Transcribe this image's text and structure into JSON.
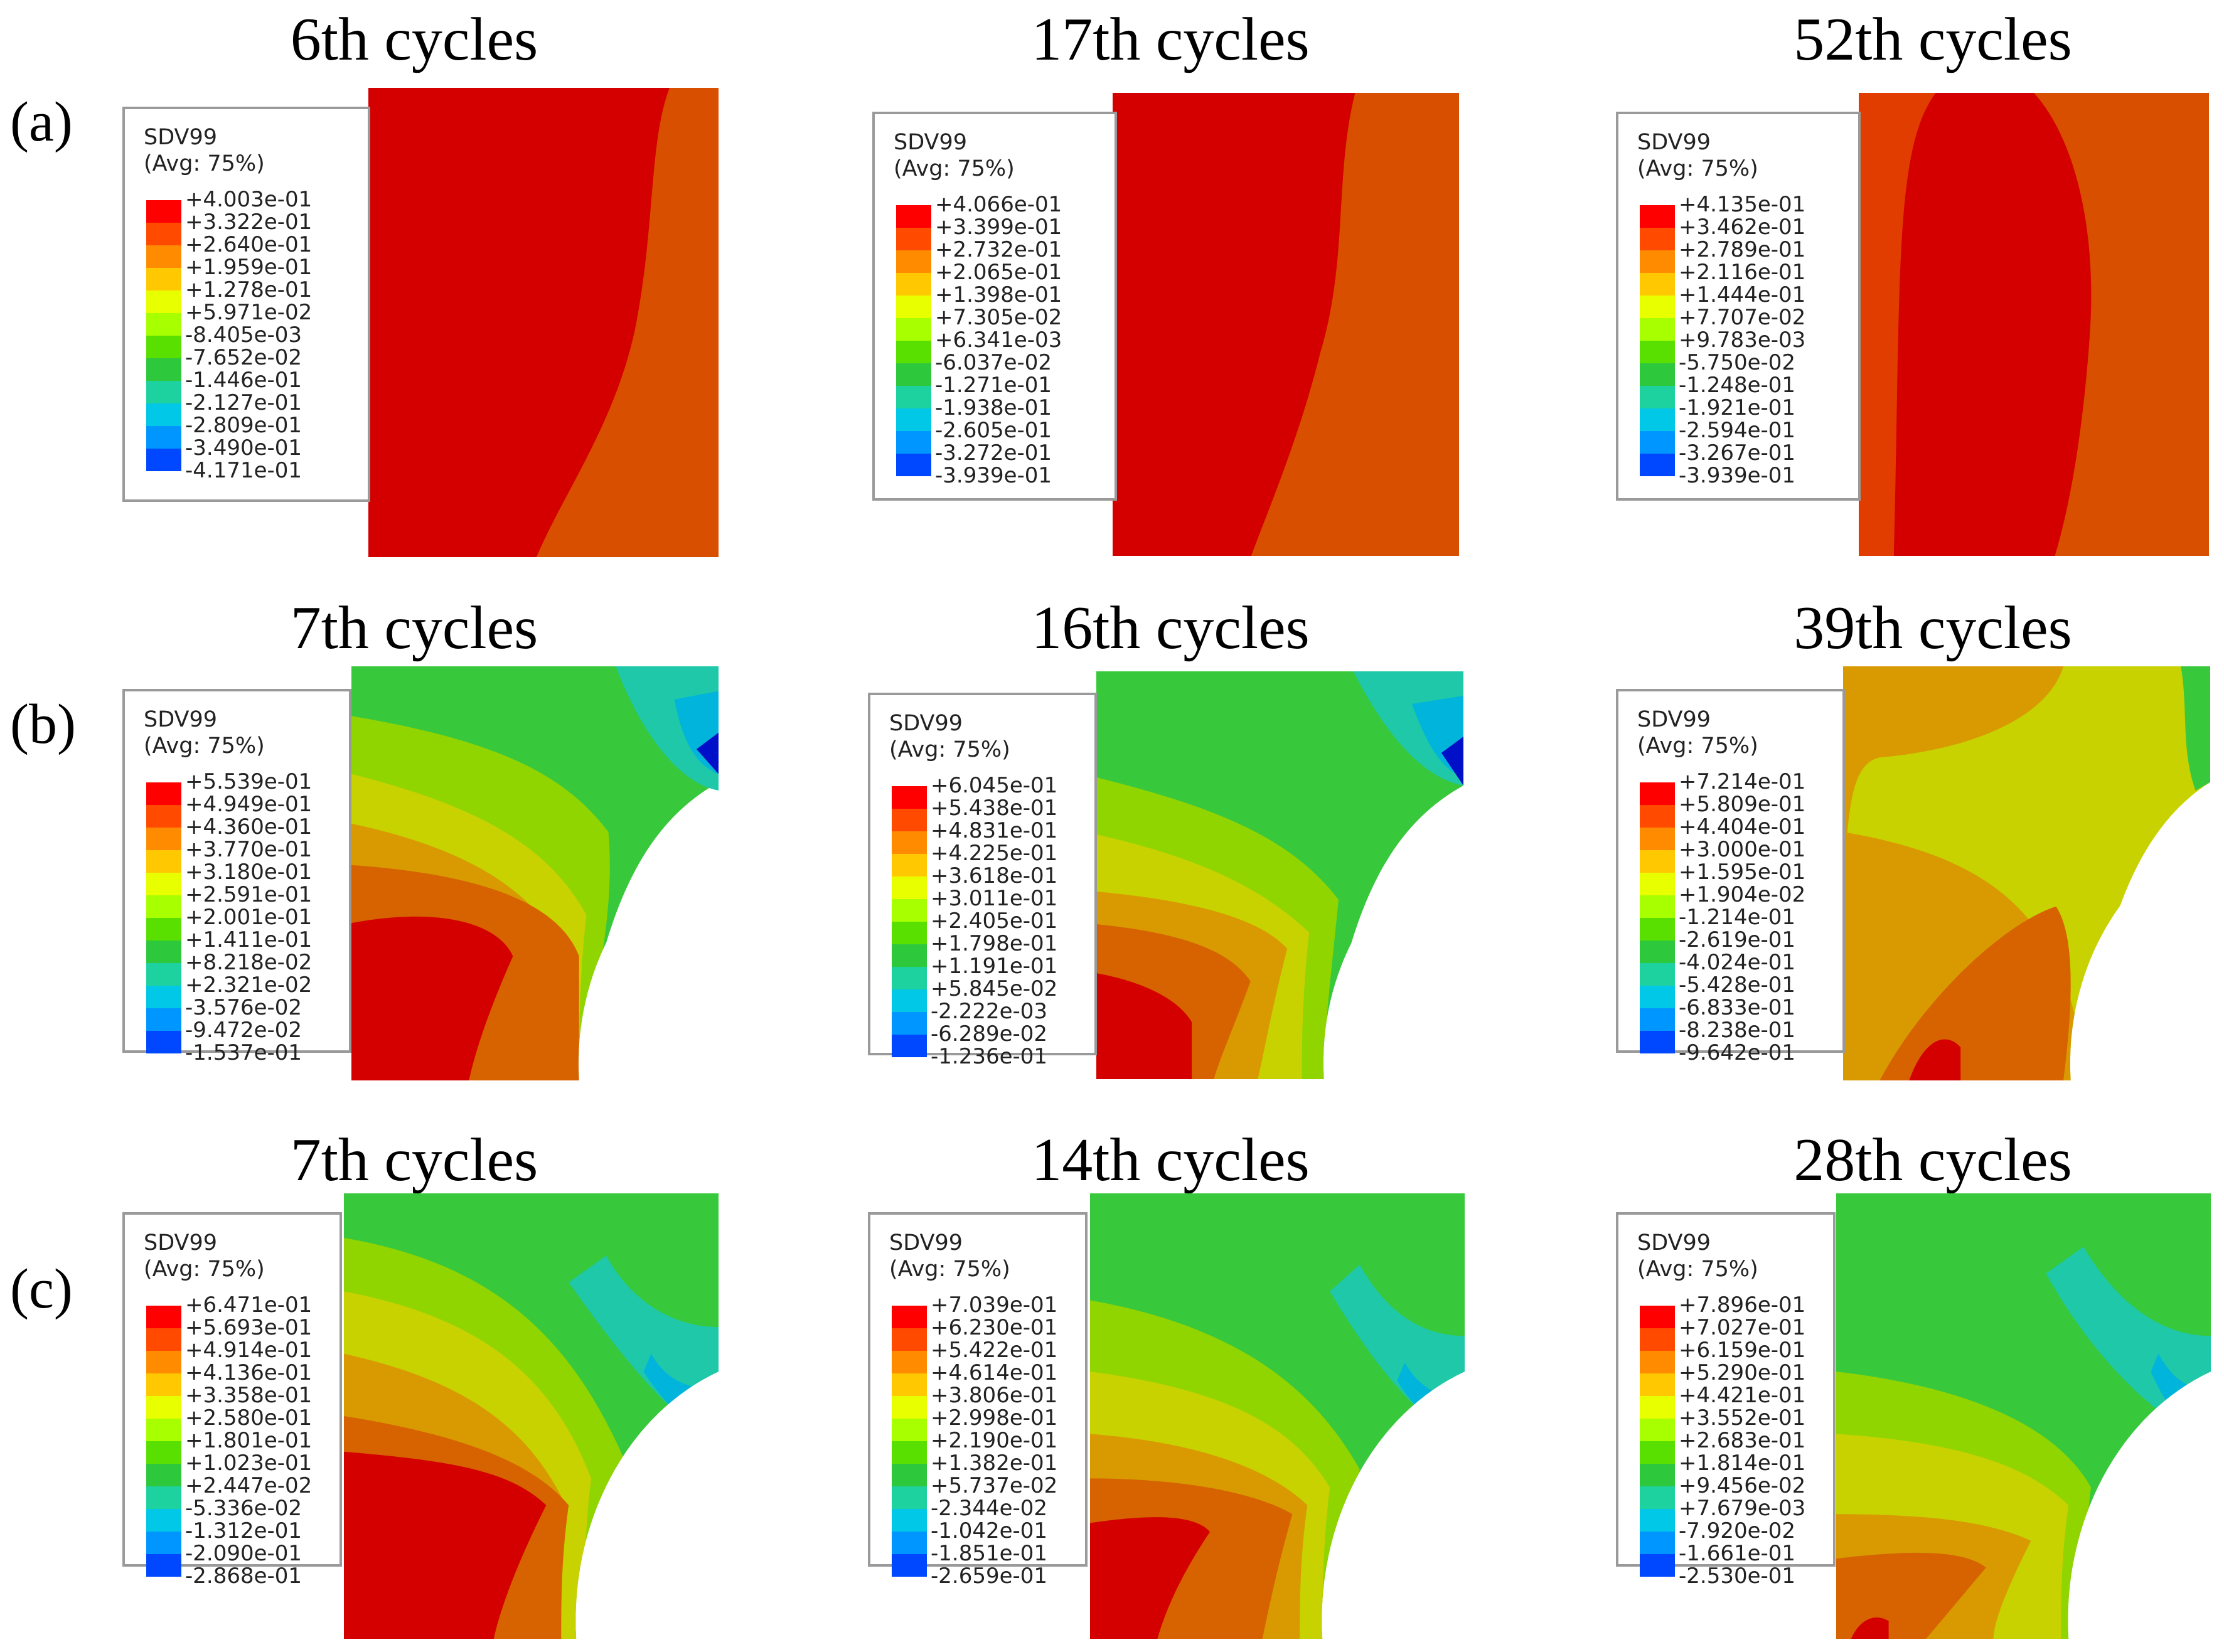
{
  "rows": [
    {
      "label": "(a)",
      "panels": [
        {
          "title": "6th cycles",
          "legend": {
            "variable": "SDV99",
            "avg": "(Avg: 75%)",
            "values": [
              "+4.003e-01",
              "+3.322e-01",
              "+2.640e-01",
              "+1.959e-01",
              "+1.278e-01",
              "+5.971e-02",
              "-8.405e-03",
              "-7.652e-02",
              "-1.446e-01",
              "-2.127e-01",
              "-2.809e-01",
              "-3.490e-01",
              "-4.171e-01"
            ]
          }
        },
        {
          "title": "17th cycles",
          "legend": {
            "variable": "SDV99",
            "avg": "(Avg: 75%)",
            "values": [
              "+4.066e-01",
              "+3.399e-01",
              "+2.732e-01",
              "+2.065e-01",
              "+1.398e-01",
              "+7.305e-02",
              "+6.341e-03",
              "-6.037e-02",
              "-1.271e-01",
              "-1.938e-01",
              "-2.605e-01",
              "-3.272e-01",
              "-3.939e-01"
            ]
          }
        },
        {
          "title": "52th cycles",
          "legend": {
            "variable": "SDV99",
            "avg": "(Avg: 75%)",
            "values": [
              "+4.135e-01",
              "+3.462e-01",
              "+2.789e-01",
              "+2.116e-01",
              "+1.444e-01",
              "+7.707e-02",
              "+9.783e-03",
              "-5.750e-02",
              "-1.248e-01",
              "-1.921e-01",
              "-2.594e-01",
              "-3.267e-01",
              "-3.939e-01"
            ]
          }
        }
      ]
    },
    {
      "label": "(b)",
      "panels": [
        {
          "title": "7th cycles",
          "legend": {
            "variable": "SDV99",
            "avg": "(Avg: 75%)",
            "values": [
              "+5.539e-01",
              "+4.949e-01",
              "+4.360e-01",
              "+3.770e-01",
              "+3.180e-01",
              "+2.591e-01",
              "+2.001e-01",
              "+1.411e-01",
              "+8.218e-02",
              "+2.321e-02",
              "-3.576e-02",
              "-9.472e-02",
              "-1.537e-01"
            ]
          }
        },
        {
          "title": "16th cycles",
          "legend": {
            "variable": "SDV99",
            "avg": "(Avg: 75%)",
            "values": [
              "+6.045e-01",
              "+5.438e-01",
              "+4.831e-01",
              "+4.225e-01",
              "+3.618e-01",
              "+3.011e-01",
              "+2.405e-01",
              "+1.798e-01",
              "+1.191e-01",
              "+5.845e-02",
              "-2.222e-03",
              "-6.289e-02",
              "-1.236e-01"
            ]
          }
        },
        {
          "title": "39th cycles",
          "legend": {
            "variable": "SDV99",
            "avg": "(Avg: 75%)",
            "values": [
              "+7.214e-01",
              "+5.809e-01",
              "+4.404e-01",
              "+3.000e-01",
              "+1.595e-01",
              "+1.904e-02",
              "-1.214e-01",
              "-2.619e-01",
              "-4.024e-01",
              "-5.428e-01",
              "-6.833e-01",
              "-8.238e-01",
              "-9.642e-01"
            ]
          }
        }
      ]
    },
    {
      "label": "(c)",
      "panels": [
        {
          "title": "7th cycles",
          "legend": {
            "variable": "SDV99",
            "avg": "(Avg: 75%)",
            "values": [
              "+6.471e-01",
              "+5.693e-01",
              "+4.914e-01",
              "+4.136e-01",
              "+3.358e-01",
              "+2.580e-01",
              "+1.801e-01",
              "+1.023e-01",
              "+2.447e-02",
              "-5.336e-02",
              "-1.312e-01",
              "-2.090e-01",
              "-2.868e-01"
            ]
          }
        },
        {
          "title": "14th cycles",
          "legend": {
            "variable": "SDV99",
            "avg": "(Avg: 75%)",
            "values": [
              "+7.039e-01",
              "+6.230e-01",
              "+5.422e-01",
              "+4.614e-01",
              "+3.806e-01",
              "+2.998e-01",
              "+2.190e-01",
              "+1.382e-01",
              "+5.737e-02",
              "-2.344e-02",
              "-1.042e-01",
              "-1.851e-01",
              "-2.659e-01"
            ]
          }
        },
        {
          "title": "28th cycles",
          "legend": {
            "variable": "SDV99",
            "avg": "(Avg: 75%)",
            "values": [
              "+7.896e-01",
              "+7.027e-01",
              "+6.159e-01",
              "+5.290e-01",
              "+4.421e-01",
              "+3.552e-01",
              "+2.683e-01",
              "+1.814e-01",
              "+9.456e-02",
              "+7.679e-03",
              "-7.920e-02",
              "-1.661e-01",
              "-2.530e-01"
            ]
          }
        }
      ]
    }
  ],
  "colors": {
    "scale": [
      "#ff0000",
      "#ff4a00",
      "#ff8c00",
      "#ffc800",
      "#e8ff00",
      "#a8ff00",
      "#5ae000",
      "#2ec83c",
      "#1ed2a0",
      "#00c8e6",
      "#0096ff",
      "#0048ff",
      "#0000e6"
    ],
    "field_red": "#d40000",
    "field_orange": "#d94f00",
    "field_orange_red": "#e23d00",
    "field_dark_orange": "#d66200",
    "field_amber": "#d89a00",
    "field_yellow": "#c8d200",
    "field_lime": "#90d400",
    "field_green": "#38c83c",
    "field_teal": "#1ec8a8",
    "field_cyan": "#00b4dc",
    "field_blue": "#0050e6",
    "field_dark_blue": "#0010c8"
  }
}
